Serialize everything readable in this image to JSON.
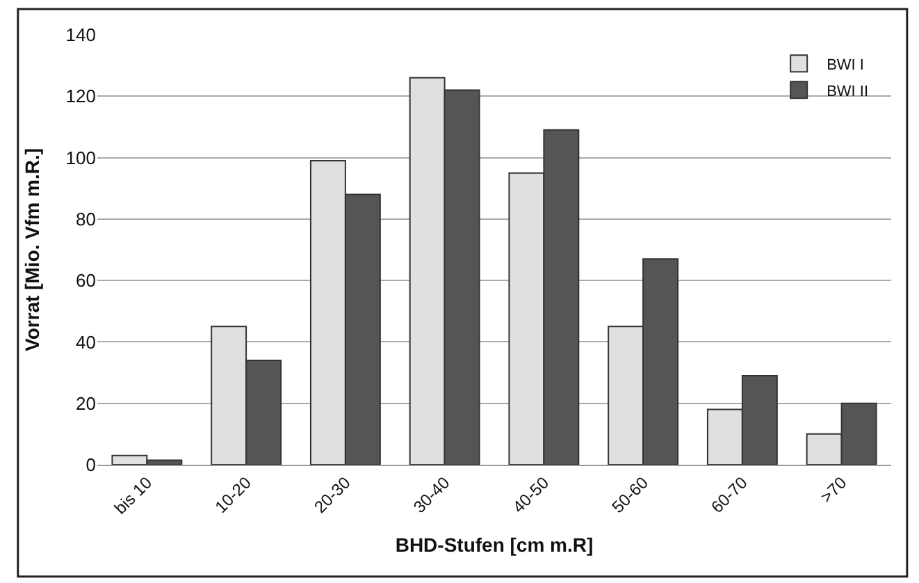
{
  "chart_data": {
    "type": "bar",
    "xlabel": "BHD-Stufen [cm m.R]",
    "ylabel": "Vorrat [Mio. Vfm m.R.]",
    "categories": [
      "bis 10",
      "10-20",
      "20-30",
      "30-40",
      "40-50",
      "50-60",
      "60-70",
      ">70"
    ],
    "series": [
      {
        "name": "BWI I",
        "color": "#e0e0e0",
        "values": [
          3,
          45,
          99,
          126,
          95,
          45,
          18,
          10
        ]
      },
      {
        "name": "BWI II",
        "color": "#555555",
        "values": [
          1.5,
          34,
          88,
          122,
          109,
          67,
          29,
          20
        ]
      }
    ],
    "ylim": [
      0,
      140
    ],
    "yticks": [
      0,
      20,
      40,
      60,
      80,
      100,
      120,
      140
    ],
    "grid": "y",
    "legend": "top right"
  }
}
